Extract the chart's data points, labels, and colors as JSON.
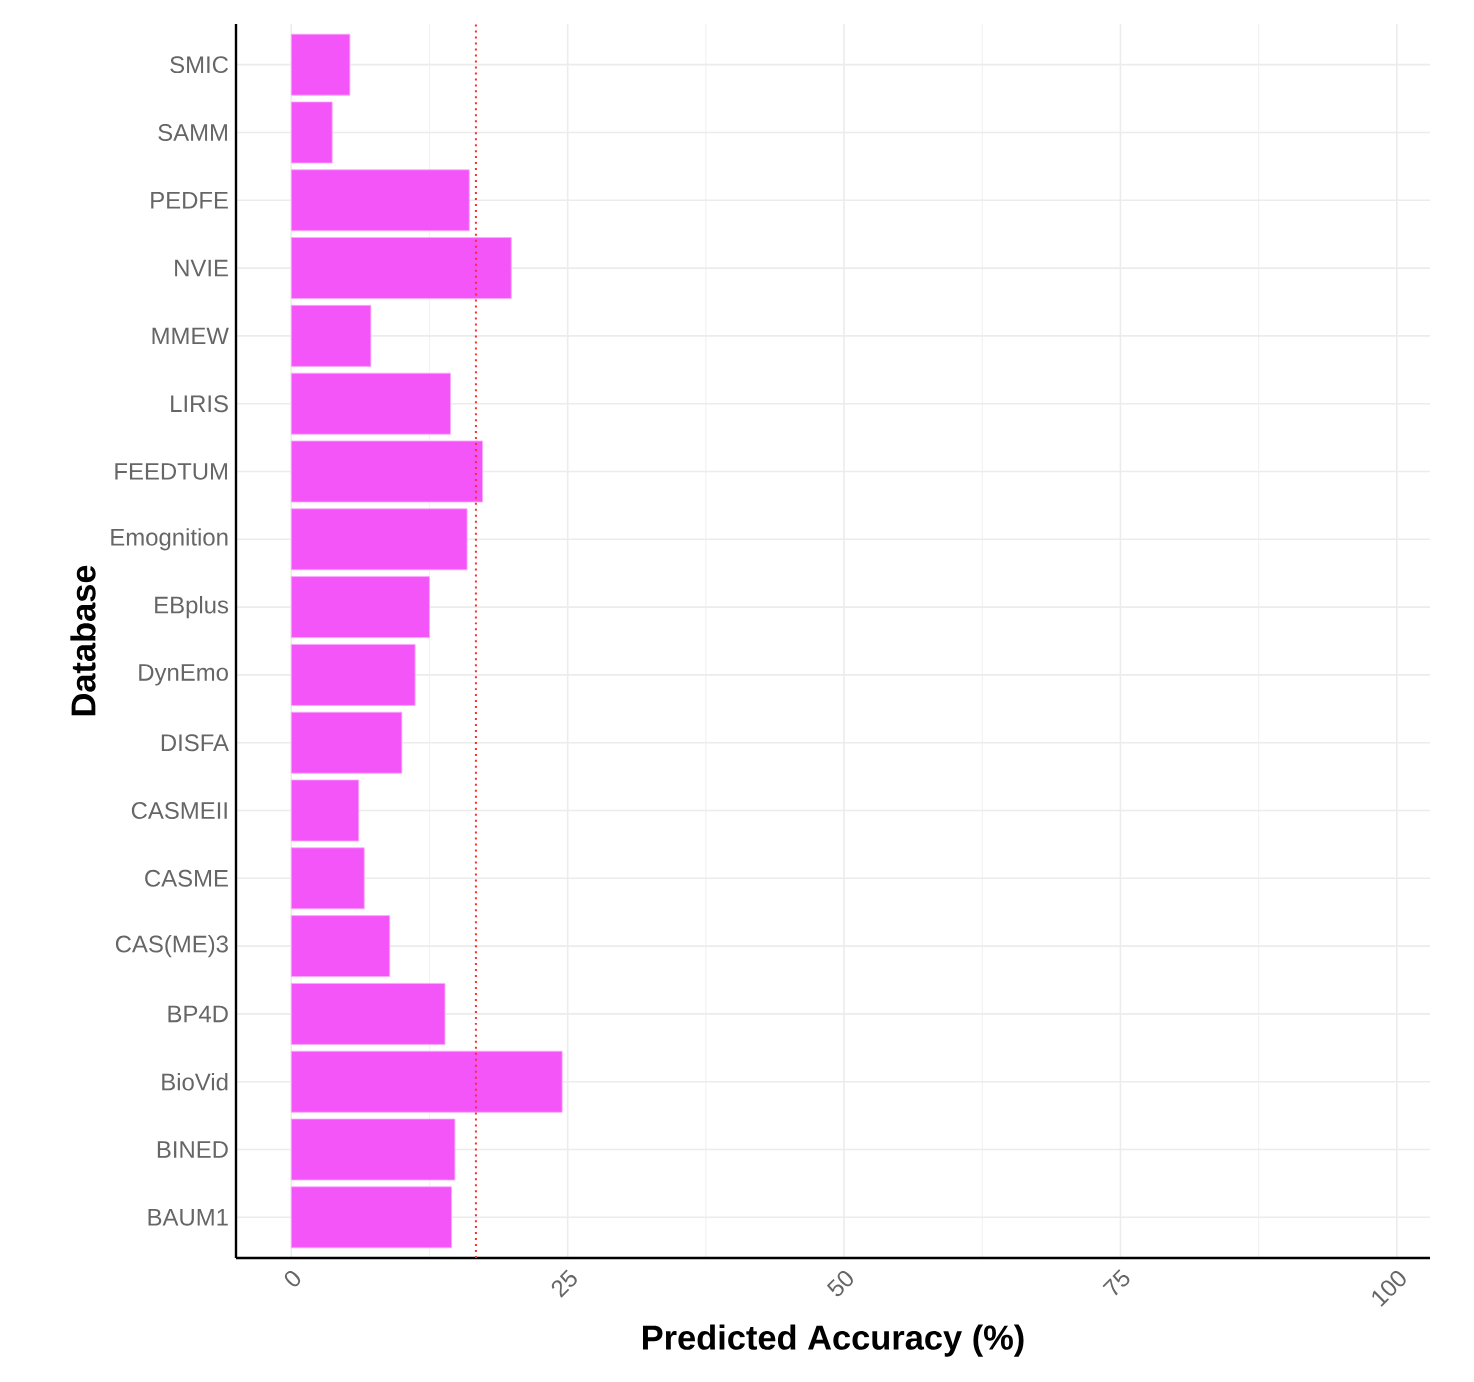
{
  "chart_data": {
    "type": "bar",
    "orientation": "horizontal",
    "xlabel": "Predicted Accuracy (%)",
    "ylabel": "Database",
    "categories": [
      "SMIC",
      "SAMM",
      "PEDFE",
      "NVIE",
      "MMEW",
      "LIRIS",
      "FEEDTUM",
      "Emognition",
      "EBplus",
      "DynEmo",
      "DISFA",
      "CASMEII",
      "CASME",
      "CAS(ME)3",
      "BP4D",
      "BioVid",
      "BINED",
      "BAUM1"
    ],
    "values": [
      5.3,
      3.7,
      16.1,
      19.9,
      7.2,
      14.4,
      17.3,
      15.9,
      12.5,
      11.2,
      10.0,
      6.1,
      6.6,
      8.9,
      13.9,
      24.5,
      14.8,
      14.5
    ],
    "color": "#f455f9",
    "xlim": [
      -5,
      103
    ],
    "xticks": [
      0,
      25,
      50,
      75,
      100
    ],
    "grid": true,
    "ref_lines": [
      {
        "axis": "x",
        "value": 16.7,
        "color": "#ff2a2a",
        "line_style": "dotted"
      }
    ]
  }
}
